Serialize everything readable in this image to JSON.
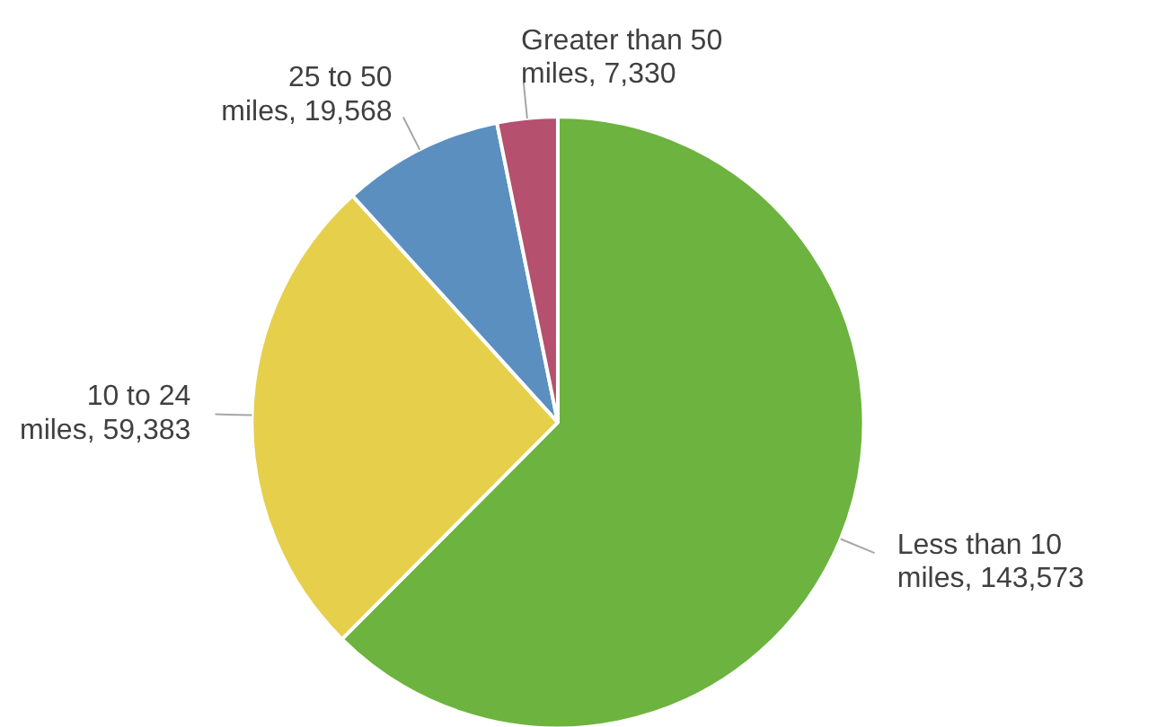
{
  "chart_data": {
    "type": "pie",
    "categories": [
      "Less than 10 miles",
      "10 to 24 miles",
      "25 to 50 miles",
      "Greater than 50 miles"
    ],
    "values": [
      143573,
      59383,
      19568,
      7330
    ],
    "value_labels": [
      "143,573",
      "59,383",
      "19,568",
      "7,330"
    ],
    "colors": [
      "#6db33f",
      "#e6cf4a",
      "#5b8fbf",
      "#b5506e"
    ]
  }
}
